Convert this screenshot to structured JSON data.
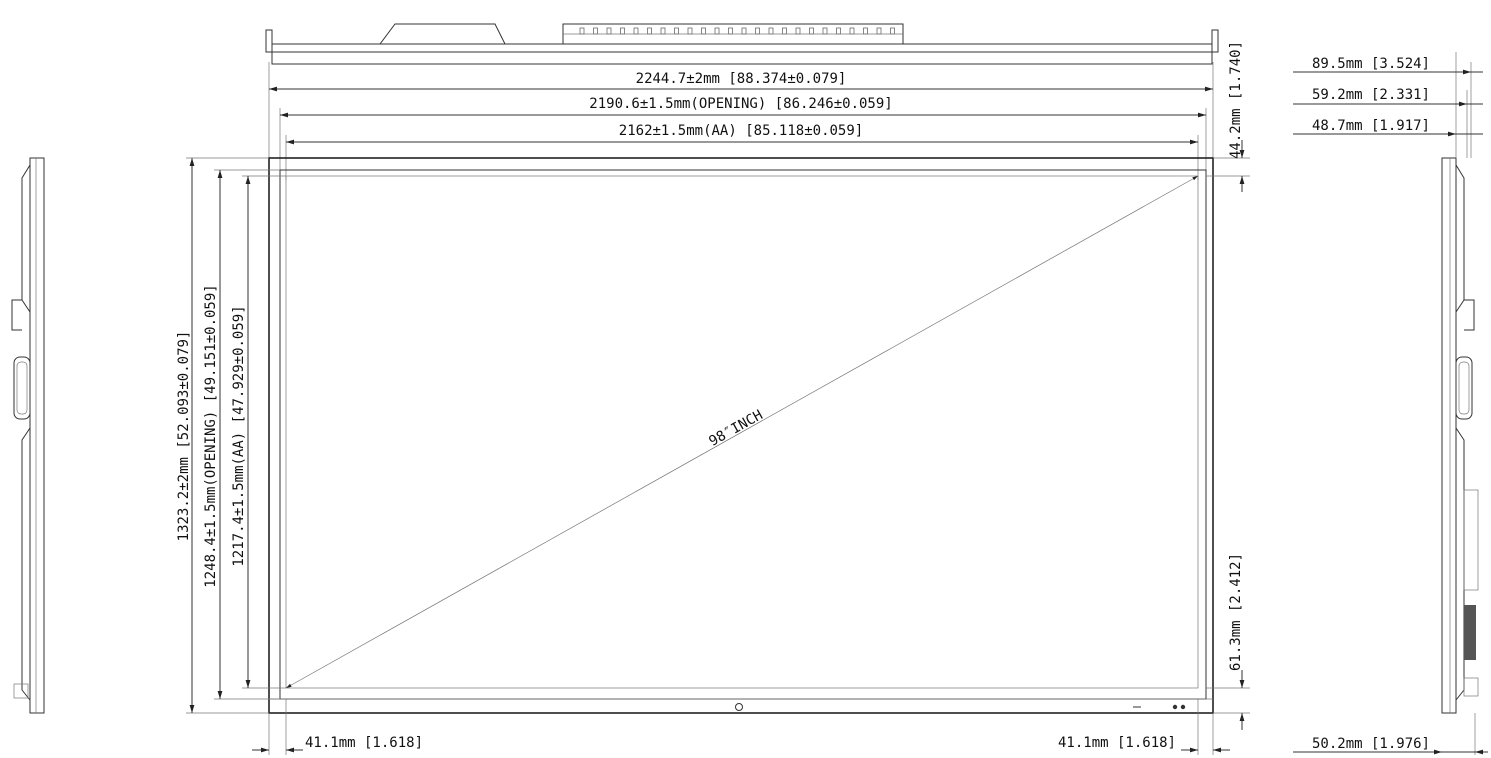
{
  "dimensions": {
    "overall_width": "2244.7±2mm [88.374±0.079]",
    "opening_width": "2190.6±1.5mm(OPENING) [86.246±0.059]",
    "aa_width": "2162±1.5mm(AA) [85.118±0.059]",
    "overall_height": "1323.2±2mm [52.093±0.079]",
    "opening_height": "1248.4±1.5mm(OPENING) [49.151±0.059]",
    "aa_height": "1217.4±1.5mm(AA) [47.929±0.059]",
    "top_bezel": "44.2mm [1.740]",
    "bottom_bezel": "61.3mm [2.412]",
    "left_bezel": "41.1mm [1.618]",
    "right_bezel": "41.1mm [1.618]",
    "depth_total": "89.5mm [3.524]",
    "depth_mid": "59.2mm [2.331]",
    "depth_body": "48.7mm [1.917]",
    "depth_bottom": "50.2mm [1.976]"
  },
  "diagonal_label": "98″INCH"
}
